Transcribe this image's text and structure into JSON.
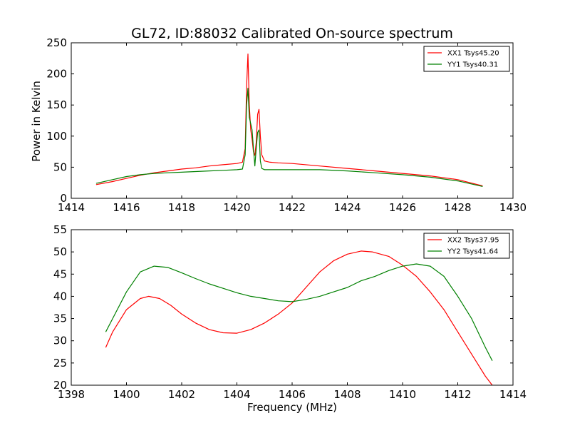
{
  "chart_data": [
    {
      "type": "line",
      "title": "GL72, ID:88032 Calibrated On-source spectrum",
      "xlabel": "",
      "ylabel": "Power in Kelvin",
      "xlim": [
        1414,
        1430
      ],
      "ylim": [
        0,
        250
      ],
      "xticks": [
        1414,
        1416,
        1418,
        1420,
        1422,
        1424,
        1426,
        1428,
        1430
      ],
      "yticks": [
        0,
        50,
        100,
        150,
        200,
        250
      ],
      "grid": false,
      "legend_position": "top-right",
      "series": [
        {
          "name": "XX1 Tsys45.20",
          "color": "#ff0000",
          "x": [
            1414.9,
            1415.5,
            1416.0,
            1416.5,
            1417.0,
            1417.5,
            1418.0,
            1418.5,
            1419.0,
            1419.5,
            1420.0,
            1420.2,
            1420.3,
            1420.35,
            1420.4,
            1420.45,
            1420.5,
            1420.55,
            1420.6,
            1420.65,
            1420.7,
            1420.75,
            1420.8,
            1420.85,
            1420.9,
            1421.0,
            1421.2,
            1421.5,
            1422.0,
            1423.0,
            1424.0,
            1425.0,
            1426.0,
            1427.0,
            1428.0,
            1428.9
          ],
          "y": [
            22,
            27,
            32,
            37,
            41,
            44,
            47,
            49,
            52,
            54,
            56,
            58,
            80,
            180,
            232,
            150,
            110,
            95,
            75,
            69,
            90,
            135,
            143,
            100,
            70,
            60,
            58,
            57,
            56,
            52,
            48,
            44,
            40,
            36,
            30,
            20
          ]
        },
        {
          "name": "YY1 Tsys40.31",
          "color": "#008000",
          "x": [
            1414.9,
            1415.5,
            1416.0,
            1416.5,
            1417.0,
            1417.5,
            1418.0,
            1418.5,
            1419.0,
            1419.5,
            1420.0,
            1420.2,
            1420.3,
            1420.35,
            1420.4,
            1420.45,
            1420.5,
            1420.55,
            1420.6,
            1420.65,
            1420.7,
            1420.75,
            1420.8,
            1420.85,
            1420.9,
            1421.0,
            1421.2,
            1421.5,
            1422.0,
            1423.0,
            1424.0,
            1425.0,
            1426.0,
            1427.0,
            1428.0,
            1428.9
          ],
          "y": [
            24,
            30,
            35,
            38,
            40,
            41,
            42,
            43,
            44,
            45,
            46,
            47,
            70,
            150,
            177,
            130,
            120,
            110,
            80,
            52,
            80,
            106,
            110,
            60,
            48,
            46,
            46,
            46,
            46,
            46,
            44,
            41,
            38,
            34,
            28,
            19
          ]
        }
      ]
    },
    {
      "type": "line",
      "title": "",
      "xlabel": "Frequency (MHz)",
      "ylabel": "",
      "xlim": [
        1398,
        1414
      ],
      "ylim": [
        20,
        55
      ],
      "xticks": [
        1398,
        1400,
        1402,
        1404,
        1406,
        1408,
        1410,
        1412,
        1414
      ],
      "yticks": [
        20,
        25,
        30,
        35,
        40,
        45,
        50,
        55
      ],
      "grid": false,
      "legend_position": "top-right",
      "series": [
        {
          "name": "XX2 Tsys37.95",
          "color": "#ff0000",
          "x": [
            1399.25,
            1399.5,
            1400.0,
            1400.5,
            1400.8,
            1401.2,
            1401.6,
            1402.0,
            1402.5,
            1403.0,
            1403.5,
            1404.0,
            1404.5,
            1405.0,
            1405.5,
            1406.0,
            1406.5,
            1407.0,
            1407.5,
            1408.0,
            1408.5,
            1408.9,
            1409.5,
            1410.0,
            1410.5,
            1411.0,
            1411.5,
            1412.0,
            1412.5,
            1413.0,
            1413.25
          ],
          "y": [
            28.5,
            32,
            37,
            39.5,
            40,
            39.5,
            38,
            36,
            34,
            32.5,
            31.8,
            31.7,
            32.5,
            34,
            36,
            38.5,
            42,
            45.5,
            48,
            49.5,
            50.2,
            50,
            49,
            47,
            44.5,
            41,
            37,
            32,
            27,
            22,
            20
          ]
        },
        {
          "name": "YY2 Tsys41.64",
          "color": "#008000",
          "x": [
            1399.25,
            1399.5,
            1400.0,
            1400.5,
            1401.0,
            1401.5,
            1402.0,
            1402.5,
            1403.0,
            1403.5,
            1404.0,
            1404.5,
            1405.0,
            1405.5,
            1406.0,
            1406.5,
            1407.0,
            1407.5,
            1408.0,
            1408.5,
            1409.0,
            1409.5,
            1410.0,
            1410.5,
            1411.0,
            1411.5,
            1412.0,
            1412.5,
            1413.0,
            1413.25
          ],
          "y": [
            32,
            35,
            41,
            45.5,
            46.8,
            46.5,
            45.3,
            44,
            42.8,
            41.8,
            40.8,
            40,
            39.5,
            39,
            38.8,
            39.3,
            40,
            41,
            42,
            43.5,
            44.5,
            45.8,
            46.8,
            47.3,
            46.8,
            44.5,
            40,
            35,
            28.5,
            25.5
          ]
        }
      ]
    }
  ]
}
